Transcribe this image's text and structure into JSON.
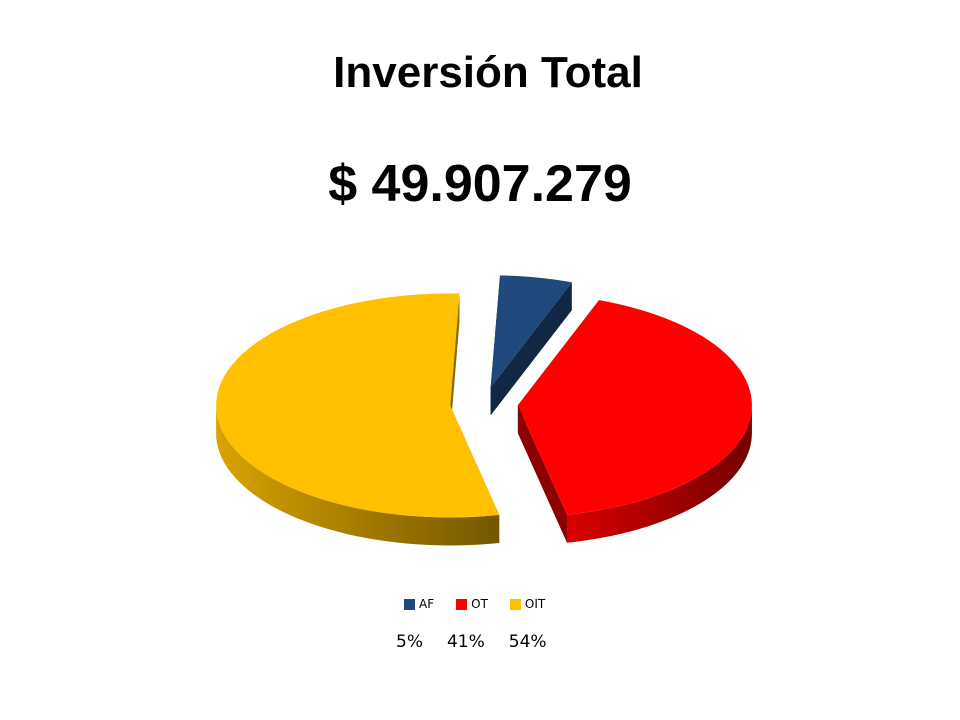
{
  "title": "Inversión Total",
  "amount": "$ 49.907.279",
  "chart_data": {
    "type": "pie",
    "style": "3d-exploded",
    "title": "",
    "categories": [
      "AF",
      "OT",
      "OIT"
    ],
    "values": [
      5,
      41,
      54
    ],
    "colors": [
      "#1F497D",
      "#FF0000",
      "#FFC000"
    ],
    "legend": {
      "position": "bottom",
      "entries": [
        "AF",
        "OT",
        "OIT"
      ]
    }
  },
  "percent_labels": [
    "5%",
    "41%",
    "54%"
  ]
}
